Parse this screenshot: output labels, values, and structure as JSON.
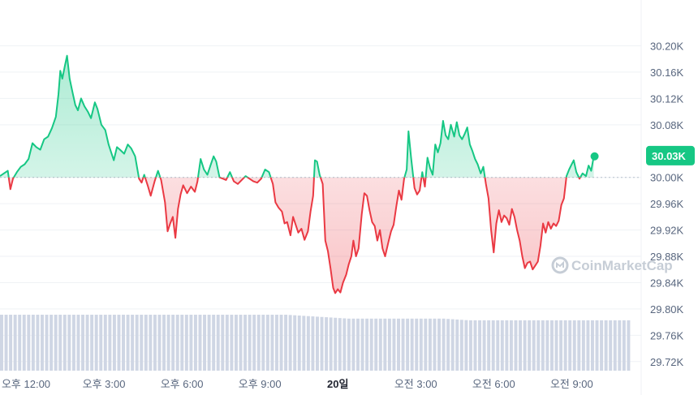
{
  "chart_data": {
    "type": "line",
    "baseline": 30000,
    "current_label": "30.03K",
    "current_value": 30033,
    "ylim": [
      29700,
      30245
    ],
    "y_ticks": [
      {
        "value": 30200,
        "label": "30.20K"
      },
      {
        "value": 30160,
        "label": "30.16K"
      },
      {
        "value": 30120,
        "label": "30.12K"
      },
      {
        "value": 30080,
        "label": "30.08K"
      },
      {
        "value": 30000,
        "label": "30.00K"
      },
      {
        "value": 29960,
        "label": "29.96K"
      },
      {
        "value": 29920,
        "label": "29.92K"
      },
      {
        "value": 29880,
        "label": "29.88K"
      },
      {
        "value": 29840,
        "label": "29.84K"
      },
      {
        "value": 29800,
        "label": "29.80K"
      },
      {
        "value": 29760,
        "label": "29.76K"
      },
      {
        "value": 29720,
        "label": "29.72K"
      }
    ],
    "x_ticks": [
      {
        "label": "오후 12:00",
        "bold": false
      },
      {
        "label": "오후 3:00",
        "bold": false
      },
      {
        "label": "오후 6:00",
        "bold": false
      },
      {
        "label": "오후 9:00",
        "bold": false
      },
      {
        "label": "20일",
        "bold": true
      },
      {
        "label": "오전 3:00",
        "bold": false
      },
      {
        "label": "오전 6:00",
        "bold": false
      },
      {
        "label": "오전 9:00",
        "bold": false
      }
    ],
    "x_tick_hours": [
      0,
      3,
      6,
      9,
      12,
      15,
      18,
      21
    ],
    "x_hours_range": [
      -1.0,
      23.3
    ],
    "series": [
      {
        "points": [
          [
            -1.0,
            30002
          ],
          [
            -0.85,
            30006
          ],
          [
            -0.7,
            30010
          ],
          [
            -0.6,
            29982
          ],
          [
            -0.5,
            29998
          ],
          [
            -0.35,
            30008
          ],
          [
            -0.2,
            30016
          ],
          [
            -0.05,
            30020
          ],
          [
            0.1,
            30028
          ],
          [
            0.25,
            30052
          ],
          [
            0.4,
            30046
          ],
          [
            0.55,
            30042
          ],
          [
            0.7,
            30058
          ],
          [
            0.85,
            30062
          ],
          [
            1.0,
            30075
          ],
          [
            1.15,
            30092
          ],
          [
            1.25,
            30126
          ],
          [
            1.32,
            30162
          ],
          [
            1.4,
            30150
          ],
          [
            1.5,
            30170
          ],
          [
            1.58,
            30185
          ],
          [
            1.68,
            30150
          ],
          [
            1.8,
            30128
          ],
          [
            1.9,
            30110
          ],
          [
            2.0,
            30102
          ],
          [
            2.12,
            30120
          ],
          [
            2.25,
            30108
          ],
          [
            2.38,
            30100
          ],
          [
            2.5,
            30090
          ],
          [
            2.65,
            30114
          ],
          [
            2.75,
            30104
          ],
          [
            2.9,
            30080
          ],
          [
            3.05,
            30072
          ],
          [
            3.18,
            30050
          ],
          [
            3.28,
            30038
          ],
          [
            3.38,
            30026
          ],
          [
            3.5,
            30046
          ],
          [
            3.62,
            30042
          ],
          [
            3.78,
            30036
          ],
          [
            3.92,
            30050
          ],
          [
            4.05,
            30044
          ],
          [
            4.2,
            30032
          ],
          [
            4.35,
            29998
          ],
          [
            4.45,
            29992
          ],
          [
            4.55,
            30004
          ],
          [
            4.68,
            29988
          ],
          [
            4.8,
            29972
          ],
          [
            4.95,
            29994
          ],
          [
            5.08,
            30010
          ],
          [
            5.2,
            29996
          ],
          [
            5.35,
            29962
          ],
          [
            5.45,
            29918
          ],
          [
            5.55,
            29930
          ],
          [
            5.65,
            29940
          ],
          [
            5.75,
            29908
          ],
          [
            5.85,
            29952
          ],
          [
            5.95,
            29974
          ],
          [
            6.05,
            29988
          ],
          [
            6.2,
            29976
          ],
          [
            6.35,
            29986
          ],
          [
            6.5,
            29978
          ],
          [
            6.6,
            29994
          ],
          [
            6.72,
            30028
          ],
          [
            6.85,
            30012
          ],
          [
            6.98,
            30004
          ],
          [
            7.1,
            30018
          ],
          [
            7.22,
            30032
          ],
          [
            7.32,
            30024
          ],
          [
            7.45,
            30000
          ],
          [
            7.58,
            29998
          ],
          [
            7.7,
            29996
          ],
          [
            7.85,
            30008
          ],
          [
            8.0,
            29994
          ],
          [
            8.15,
            29990
          ],
          [
            8.3,
            29996
          ],
          [
            8.45,
            30002
          ],
          [
            8.6,
            29998
          ],
          [
            8.75,
            29994
          ],
          [
            8.9,
            29992
          ],
          [
            9.05,
            29998
          ],
          [
            9.2,
            30012
          ],
          [
            9.35,
            30008
          ],
          [
            9.5,
            29990
          ],
          [
            9.6,
            29962
          ],
          [
            9.72,
            29954
          ],
          [
            9.85,
            29948
          ],
          [
            9.95,
            29930
          ],
          [
            10.05,
            29932
          ],
          [
            10.18,
            29912
          ],
          [
            10.28,
            29940
          ],
          [
            10.38,
            29928
          ],
          [
            10.48,
            29916
          ],
          [
            10.6,
            29922
          ],
          [
            10.72,
            29905
          ],
          [
            10.85,
            29918
          ],
          [
            10.95,
            29948
          ],
          [
            11.05,
            29972
          ],
          [
            11.12,
            30026
          ],
          [
            11.2,
            30024
          ],
          [
            11.3,
            30004
          ],
          [
            11.42,
            29990
          ],
          [
            11.52,
            29904
          ],
          [
            11.62,
            29888
          ],
          [
            11.72,
            29862
          ],
          [
            11.82,
            29832
          ],
          [
            11.9,
            29824
          ],
          [
            12.0,
            29830
          ],
          [
            12.1,
            29825
          ],
          [
            12.2,
            29840
          ],
          [
            12.32,
            29852
          ],
          [
            12.42,
            29868
          ],
          [
            12.52,
            29880
          ],
          [
            12.6,
            29904
          ],
          [
            12.7,
            29880
          ],
          [
            12.8,
            29892
          ],
          [
            12.92,
            29944
          ],
          [
            13.02,
            29976
          ],
          [
            13.12,
            29972
          ],
          [
            13.22,
            29950
          ],
          [
            13.32,
            29932
          ],
          [
            13.42,
            29926
          ],
          [
            13.52,
            29904
          ],
          [
            13.62,
            29920
          ],
          [
            13.72,
            29892
          ],
          [
            13.82,
            29880
          ],
          [
            13.95,
            29902
          ],
          [
            14.05,
            29918
          ],
          [
            14.15,
            29928
          ],
          [
            14.25,
            29956
          ],
          [
            14.35,
            29980
          ],
          [
            14.45,
            29966
          ],
          [
            14.55,
            29998
          ],
          [
            14.65,
            30012
          ],
          [
            14.72,
            30070
          ],
          [
            14.82,
            30030
          ],
          [
            14.95,
            29984
          ],
          [
            15.05,
            29974
          ],
          [
            15.15,
            29980
          ],
          [
            15.25,
            30008
          ],
          [
            15.35,
            29986
          ],
          [
            15.45,
            30030
          ],
          [
            15.55,
            30014
          ],
          [
            15.65,
            30004
          ],
          [
            15.75,
            30050
          ],
          [
            15.85,
            30038
          ],
          [
            15.95,
            30052
          ],
          [
            16.05,
            30086
          ],
          [
            16.15,
            30064
          ],
          [
            16.25,
            30058
          ],
          [
            16.35,
            30080
          ],
          [
            16.48,
            30062
          ],
          [
            16.58,
            30084
          ],
          [
            16.68,
            30064
          ],
          [
            16.78,
            30058
          ],
          [
            16.88,
            30066
          ],
          [
            16.98,
            30076
          ],
          [
            17.08,
            30050
          ],
          [
            17.18,
            30040
          ],
          [
            17.28,
            30028
          ],
          [
            17.38,
            30020
          ],
          [
            17.5,
            30006
          ],
          [
            17.6,
            30016
          ],
          [
            17.7,
            29990
          ],
          [
            17.8,
            29968
          ],
          [
            17.9,
            29920
          ],
          [
            18.0,
            29886
          ],
          [
            18.1,
            29930
          ],
          [
            18.2,
            29950
          ],
          [
            18.3,
            29932
          ],
          [
            18.4,
            29942
          ],
          [
            18.5,
            29938
          ],
          [
            18.6,
            29928
          ],
          [
            18.7,
            29952
          ],
          [
            18.8,
            29940
          ],
          [
            18.9,
            29920
          ],
          [
            19.0,
            29904
          ],
          [
            19.1,
            29880
          ],
          [
            19.2,
            29862
          ],
          [
            19.3,
            29870
          ],
          [
            19.4,
            29872
          ],
          [
            19.5,
            29860
          ],
          [
            19.6,
            29866
          ],
          [
            19.7,
            29872
          ],
          [
            19.8,
            29896
          ],
          [
            19.9,
            29930
          ],
          [
            20.0,
            29916
          ],
          [
            20.1,
            29932
          ],
          [
            20.2,
            29922
          ],
          [
            20.3,
            29930
          ],
          [
            20.4,
            29926
          ],
          [
            20.5,
            29934
          ],
          [
            20.6,
            29958
          ],
          [
            20.7,
            29968
          ],
          [
            20.8,
            30002
          ],
          [
            20.9,
            30012
          ],
          [
            21.0,
            30020
          ],
          [
            21.08,
            30026
          ],
          [
            21.18,
            30008
          ],
          [
            21.3,
            29998
          ],
          [
            21.42,
            30006
          ],
          [
            21.55,
            30002
          ],
          [
            21.65,
            30018
          ],
          [
            21.75,
            30010
          ],
          [
            21.85,
            30032
          ]
        ]
      }
    ],
    "volume_bars": 140,
    "volume_profile": [
      [
        0.0,
        1.0
      ],
      [
        0.45,
        1.0
      ],
      [
        0.55,
        0.93
      ],
      [
        0.7,
        0.93
      ],
      [
        0.74,
        0.9
      ],
      [
        1.0,
        0.9
      ]
    ]
  },
  "watermark": "CoinMarketCap",
  "colors": {
    "up": "#16c784",
    "down": "#ea3943",
    "volume": "#cfd6e4",
    "axis_text": "#58667e",
    "badge_text": "#ffffff"
  }
}
